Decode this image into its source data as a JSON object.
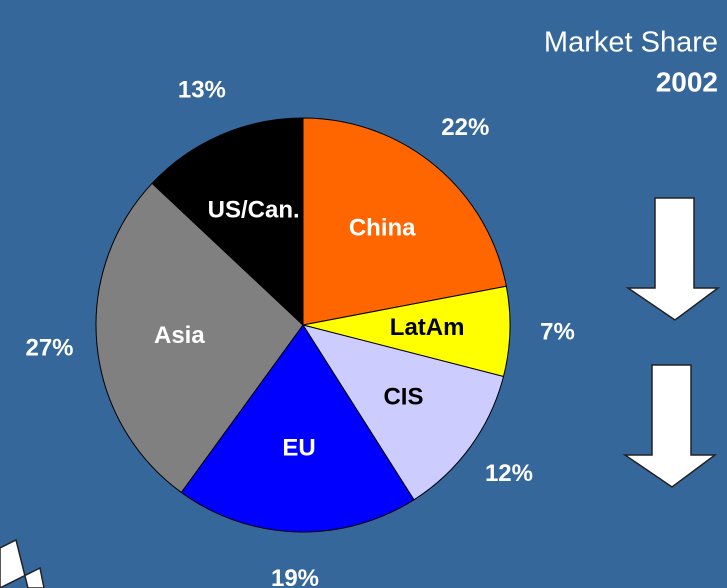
{
  "chart_data": {
    "type": "pie",
    "title": "Market Share",
    "subtitle": "2002",
    "categories": [
      "China",
      "LatAm",
      "CIS",
      "EU",
      "Asia",
      "US/Can."
    ],
    "values": [
      22,
      7,
      12,
      19,
      27,
      13
    ],
    "value_labels": [
      "22%",
      "7%",
      "12%",
      "19%",
      "27%",
      "13%"
    ],
    "colors": [
      "#ff6600",
      "#ffff00",
      "#ccccff",
      "#0000ff",
      "#808080",
      "#000000"
    ],
    "label_colors": [
      "#ffffff",
      "#000000",
      "#000000",
      "#ffffff",
      "#ffffff",
      "#ffffff"
    ]
  }
}
